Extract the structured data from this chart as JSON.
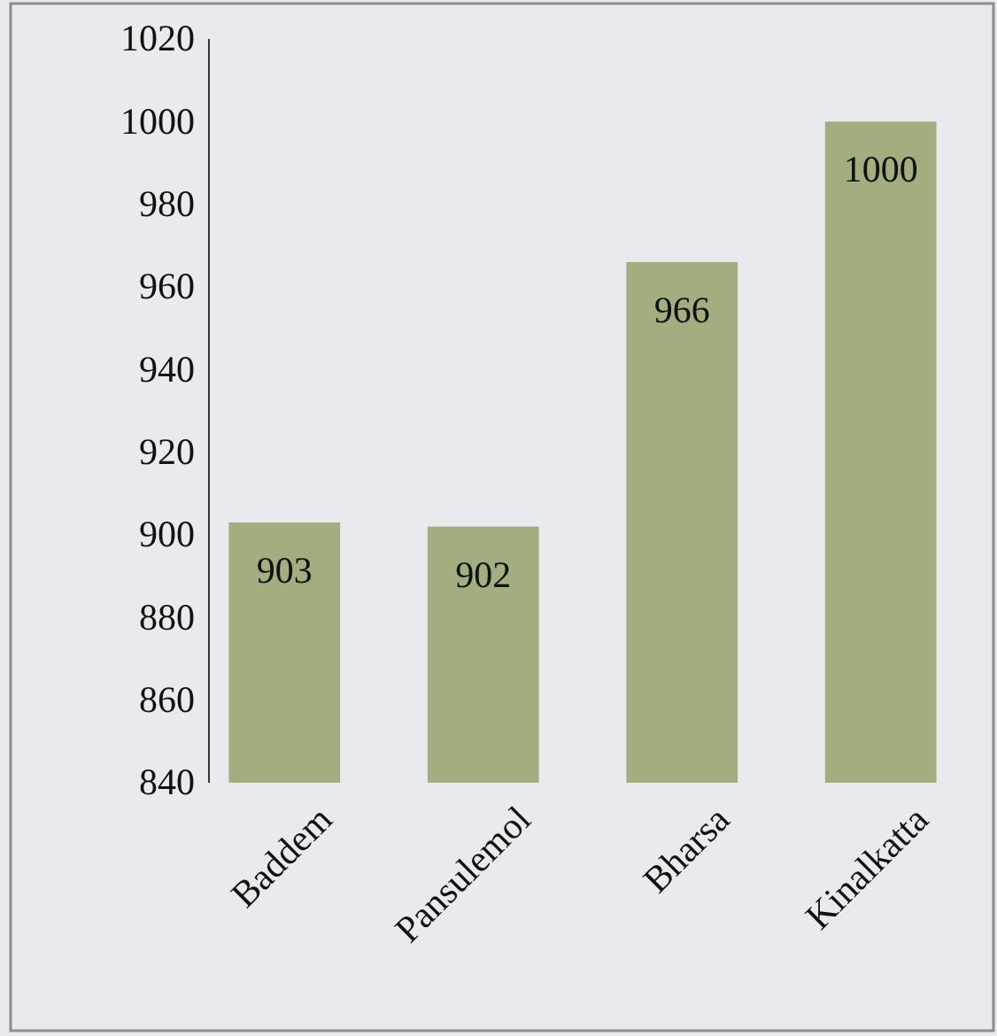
{
  "chart_data": {
    "type": "bar",
    "categories": [
      "Baddem",
      "Pansulemol",
      "Bharsa",
      "Kinalkatta"
    ],
    "values": [
      903,
      902,
      966,
      1000
    ],
    "color": "#a2ad80",
    "ylim": [
      840,
      1020
    ],
    "yticks": [
      840,
      860,
      880,
      900,
      920,
      940,
      960,
      980,
      1000,
      1020
    ],
    "data_labels": true
  }
}
